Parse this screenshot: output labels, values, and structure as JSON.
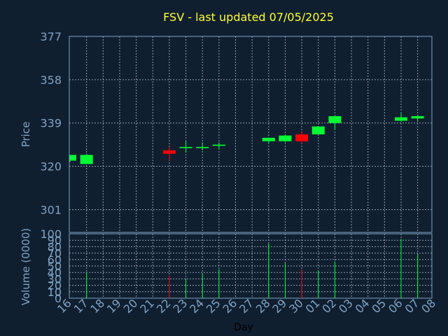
{
  "chart_data": {
    "type": "candlestick",
    "title": "FSV - last updated 07/05/2025",
    "xlabel": "Day",
    "ylabel_price": "Price",
    "ylabel_volume": "Volume (0000)",
    "price_ylim": [
      291,
      377
    ],
    "price_ticks": [
      "377",
      "358",
      "339",
      "320",
      "301"
    ],
    "volume_ylim": [
      0,
      100
    ],
    "volume_ticks": [
      "100",
      "90",
      "80",
      "70",
      "60",
      "50",
      "40",
      "30",
      "20",
      "10",
      "0"
    ],
    "x_tick_labels": [
      "16",
      "17",
      "18",
      "19",
      "20",
      "21",
      "22",
      "23",
      "24",
      "25",
      "26",
      "27",
      "28",
      "29",
      "30",
      "01",
      "02",
      "03",
      "04",
      "05",
      "06",
      "07",
      "08"
    ],
    "colors": {
      "up": "#00ff33",
      "down": "#ff0000",
      "background": "#0f1f30",
      "axis_text": "#7fa3c4",
      "title": "#ffff33",
      "grid": "#9fb3c8"
    },
    "grid": true,
    "candles": [
      {
        "day": "16",
        "open": 322.5,
        "high": 325.0,
        "low": 322.0,
        "close": 325.0,
        "volume": 0
      },
      {
        "day": "17",
        "open": 321.0,
        "high": 325.5,
        "low": 321.0,
        "close": 325.0,
        "volume": 40
      },
      {
        "day": "22",
        "open": 327.0,
        "high": 328.5,
        "low": 322.5,
        "close": 325.5,
        "volume": 35
      },
      {
        "day": "23",
        "open": 328.0,
        "high": 331.0,
        "low": 326.0,
        "close": 328.5,
        "volume": 30
      },
      {
        "day": "24",
        "open": 328.0,
        "high": 330.5,
        "low": 327.0,
        "close": 328.5,
        "volume": 38
      },
      {
        "day": "25",
        "open": 329.0,
        "high": 330.5,
        "low": 327.5,
        "close": 329.5,
        "volume": 45
      },
      {
        "day": "28",
        "open": 331.0,
        "high": 332.5,
        "low": 330.0,
        "close": 332.5,
        "volume": 85
      },
      {
        "day": "29",
        "open": 331.0,
        "high": 334.0,
        "low": 330.5,
        "close": 333.5,
        "volume": 55
      },
      {
        "day": "30",
        "open": 334.0,
        "high": 335.5,
        "low": 330.0,
        "close": 331.0,
        "volume": 45
      },
      {
        "day": "01",
        "open": 334.0,
        "high": 337.5,
        "low": 334.0,
        "close": 337.5,
        "volume": 43
      },
      {
        "day": "02",
        "open": 339.0,
        "high": 342.0,
        "low": 336.0,
        "close": 342.0,
        "volume": 57
      },
      {
        "day": "06",
        "open": 340.0,
        "high": 343.5,
        "low": 339.5,
        "close": 341.5,
        "volume": 92
      },
      {
        "day": "07",
        "open": 341.0,
        "high": 342.5,
        "low": 340.0,
        "close": 342.0,
        "volume": 68
      }
    ]
  }
}
